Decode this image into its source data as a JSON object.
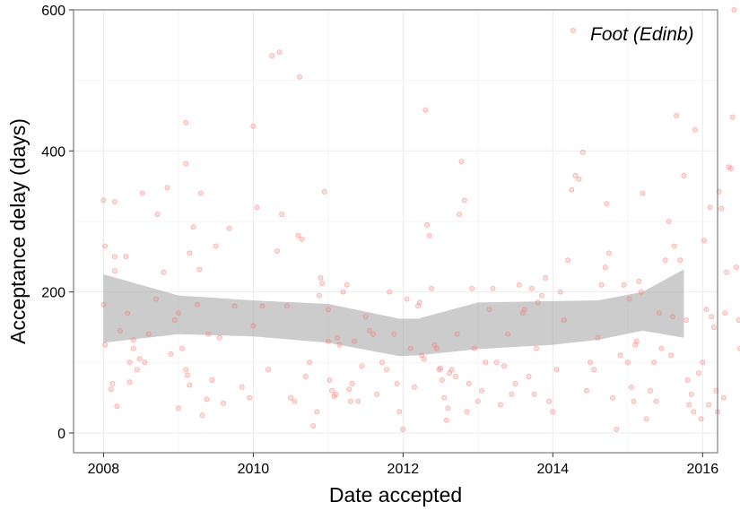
{
  "chart_data": {
    "type": "scatter",
    "xlabel": "Date accepted",
    "ylabel": "Acceptance delay (days)",
    "xlim": [
      2007.6,
      2016.2
    ],
    "ylim": [
      -28,
      600
    ],
    "x_ticks": [
      "2008",
      "2010",
      "2012",
      "2014",
      "2016"
    ],
    "y_ticks": [
      "0",
      "200",
      "400",
      "600"
    ],
    "grid": true,
    "legend_position": "top-right",
    "series": [
      {
        "name": "Foot (Edinb)",
        "color": "#F8766D",
        "points": [
          [
            2008.0,
            182
          ],
          [
            2008.0,
            330
          ],
          [
            2008.02,
            265
          ],
          [
            2008.02,
            125
          ],
          [
            2008.1,
            62
          ],
          [
            2008.12,
            70
          ],
          [
            2008.15,
            328
          ],
          [
            2008.15,
            250
          ],
          [
            2008.15,
            230
          ],
          [
            2008.18,
            38
          ],
          [
            2008.22,
            145
          ],
          [
            2008.3,
            250
          ],
          [
            2008.32,
            170
          ],
          [
            2008.35,
            100
          ],
          [
            2008.35,
            72
          ],
          [
            2008.4,
            120
          ],
          [
            2008.4,
            132
          ],
          [
            2008.45,
            90
          ],
          [
            2008.48,
            105
          ],
          [
            2008.52,
            340
          ],
          [
            2008.55,
            100
          ],
          [
            2008.6,
            140
          ],
          [
            2008.7,
            190
          ],
          [
            2008.72,
            310
          ],
          [
            2008.8,
            228
          ],
          [
            2008.85,
            348
          ],
          [
            2008.9,
            112
          ],
          [
            2008.95,
            160
          ],
          [
            2009.0,
            170
          ],
          [
            2009.0,
            35
          ],
          [
            2009.05,
            120
          ],
          [
            2009.1,
            440
          ],
          [
            2009.1,
            382
          ],
          [
            2009.1,
            90
          ],
          [
            2009.12,
            82
          ],
          [
            2009.15,
            68
          ],
          [
            2009.15,
            255
          ],
          [
            2009.2,
            292
          ],
          [
            2009.25,
            182
          ],
          [
            2009.28,
            232
          ],
          [
            2009.3,
            340
          ],
          [
            2009.32,
            25
          ],
          [
            2009.38,
            48
          ],
          [
            2009.4,
            140
          ],
          [
            2009.45,
            75
          ],
          [
            2009.5,
            265
          ],
          [
            2009.55,
            135
          ],
          [
            2009.6,
            42
          ],
          [
            2009.68,
            290
          ],
          [
            2009.75,
            180
          ],
          [
            2009.85,
            65
          ],
          [
            2009.95,
            50
          ],
          [
            2010.0,
            152
          ],
          [
            2010.0,
            435
          ],
          [
            2010.05,
            320
          ],
          [
            2010.12,
            180
          ],
          [
            2010.2,
            90
          ],
          [
            2010.25,
            535
          ],
          [
            2010.32,
            258
          ],
          [
            2010.35,
            540
          ],
          [
            2010.38,
            310
          ],
          [
            2010.45,
            180
          ],
          [
            2010.5,
            50
          ],
          [
            2010.55,
            45
          ],
          [
            2010.6,
            280
          ],
          [
            2010.62,
            505
          ],
          [
            2010.65,
            275
          ],
          [
            2010.7,
            80
          ],
          [
            2010.75,
            100
          ],
          [
            2010.8,
            10
          ],
          [
            2010.85,
            30
          ],
          [
            2010.88,
            195
          ],
          [
            2010.9,
            220
          ],
          [
            2010.92,
            212
          ],
          [
            2010.95,
            342
          ],
          [
            2011.0,
            175
          ],
          [
            2011.0,
            130
          ],
          [
            2011.02,
            75
          ],
          [
            2011.05,
            60
          ],
          [
            2011.08,
            52
          ],
          [
            2011.1,
            55
          ],
          [
            2011.12,
            135
          ],
          [
            2011.15,
            125
          ],
          [
            2011.2,
            200
          ],
          [
            2011.25,
            210
          ],
          [
            2011.28,
            62
          ],
          [
            2011.3,
            45
          ],
          [
            2011.32,
            70
          ],
          [
            2011.35,
            130
          ],
          [
            2011.4,
            45
          ],
          [
            2011.45,
            95
          ],
          [
            2011.5,
            165
          ],
          [
            2011.55,
            145
          ],
          [
            2011.6,
            140
          ],
          [
            2011.65,
            55
          ],
          [
            2011.72,
            100
          ],
          [
            2011.78,
            90
          ],
          [
            2011.82,
            200
          ],
          [
            2011.88,
            140
          ],
          [
            2011.92,
            70
          ],
          [
            2011.95,
            30
          ],
          [
            2012.0,
            5
          ],
          [
            2012.05,
            190
          ],
          [
            2012.1,
            120
          ],
          [
            2012.15,
            65
          ],
          [
            2012.2,
            180
          ],
          [
            2012.22,
            185
          ],
          [
            2012.25,
            110
          ],
          [
            2012.28,
            105
          ],
          [
            2012.3,
            458
          ],
          [
            2012.32,
            295
          ],
          [
            2012.35,
            280
          ],
          [
            2012.38,
            205
          ],
          [
            2012.42,
            125
          ],
          [
            2012.45,
            120
          ],
          [
            2012.48,
            90
          ],
          [
            2012.5,
            92
          ],
          [
            2012.52,
            75
          ],
          [
            2012.55,
            50
          ],
          [
            2012.58,
            18
          ],
          [
            2012.6,
            35
          ],
          [
            2012.62,
            85
          ],
          [
            2012.65,
            90
          ],
          [
            2012.7,
            80
          ],
          [
            2012.72,
            140
          ],
          [
            2012.75,
            310
          ],
          [
            2012.78,
            385
          ],
          [
            2012.82,
            330
          ],
          [
            2012.85,
            30
          ],
          [
            2012.88,
            70
          ],
          [
            2012.92,
            205
          ],
          [
            2012.95,
            120
          ],
          [
            2013.0,
            45
          ],
          [
            2013.05,
            60
          ],
          [
            2013.1,
            100
          ],
          [
            2013.15,
            175
          ],
          [
            2013.2,
            205
          ],
          [
            2013.25,
            100
          ],
          [
            2013.3,
            40
          ],
          [
            2013.35,
            95
          ],
          [
            2013.4,
            140
          ],
          [
            2013.45,
            55
          ],
          [
            2013.5,
            70
          ],
          [
            2013.55,
            210
          ],
          [
            2013.6,
            170
          ],
          [
            2013.62,
            175
          ],
          [
            2013.68,
            80
          ],
          [
            2013.72,
            205
          ],
          [
            2013.75,
            55
          ],
          [
            2013.78,
            120
          ],
          [
            2013.8,
            185
          ],
          [
            2013.85,
            195
          ],
          [
            2013.9,
            220
          ],
          [
            2013.95,
            45
          ],
          [
            2014.0,
            30
          ],
          [
            2014.05,
            90
          ],
          [
            2014.1,
            200
          ],
          [
            2014.15,
            160
          ],
          [
            2014.2,
            245
          ],
          [
            2014.25,
            345
          ],
          [
            2014.3,
            365
          ],
          [
            2014.35,
            360
          ],
          [
            2014.4,
            398
          ],
          [
            2014.45,
            60
          ],
          [
            2014.5,
            100
          ],
          [
            2014.55,
            90
          ],
          [
            2014.6,
            135
          ],
          [
            2014.65,
            210
          ],
          [
            2014.7,
            235
          ],
          [
            2014.72,
            325
          ],
          [
            2014.75,
            255
          ],
          [
            2014.8,
            50
          ],
          [
            2014.85,
            5
          ],
          [
            2014.9,
            110
          ],
          [
            2014.95,
            210
          ],
          [
            2015.0,
            100
          ],
          [
            2015.02,
            190
          ],
          [
            2015.05,
            65
          ],
          [
            2015.08,
            45
          ],
          [
            2015.1,
            125
          ],
          [
            2015.12,
            130
          ],
          [
            2015.15,
            215
          ],
          [
            2015.18,
            200
          ],
          [
            2015.2,
            340
          ],
          [
            2015.25,
            20
          ],
          [
            2015.3,
            60
          ],
          [
            2015.35,
            100
          ],
          [
            2015.38,
            45
          ],
          [
            2015.42,
            170
          ],
          [
            2015.45,
            120
          ],
          [
            2015.5,
            245
          ],
          [
            2015.55,
            300
          ],
          [
            2015.58,
            110
          ],
          [
            2015.6,
            165
          ],
          [
            2015.62,
            265
          ],
          [
            2015.65,
            450
          ],
          [
            2015.7,
            245
          ],
          [
            2015.75,
            365
          ],
          [
            2015.78,
            160
          ],
          [
            2015.8,
            75
          ],
          [
            2015.82,
            40
          ],
          [
            2015.85,
            55
          ],
          [
            2015.88,
            30
          ],
          [
            2015.9,
            430
          ],
          [
            2015.95,
            85
          ],
          [
            2015.98,
            20
          ],
          [
            2016.0,
            100
          ],
          [
            2016.02,
            273
          ],
          [
            2016.05,
            175
          ],
          [
            2016.08,
            40
          ],
          [
            2016.1,
            320
          ],
          [
            2016.12,
            165
          ],
          [
            2016.15,
            150
          ],
          [
            2016.18,
            60
          ],
          [
            2016.2,
            30
          ],
          [
            2016.22,
            342
          ],
          [
            2016.25,
            318
          ],
          [
            2016.28,
            50
          ],
          [
            2016.3,
            170
          ],
          [
            2016.32,
            228
          ],
          [
            2016.35,
            377
          ],
          [
            2016.38,
            375
          ],
          [
            2016.4,
            448
          ],
          [
            2016.42,
            600
          ],
          [
            2016.45,
            235
          ],
          [
            2016.48,
            160
          ],
          [
            2016.5,
            120
          ]
        ]
      }
    ],
    "smooth": {
      "color": "#999999",
      "x": [
        2008.0,
        2009.0,
        2010.0,
        2011.0,
        2011.95,
        2012.2,
        2013.0,
        2014.0,
        2014.6,
        2015.2,
        2015.75
      ],
      "upper": [
        225,
        195,
        188,
        183,
        162,
        162,
        185,
        187,
        188,
        200,
        232
      ],
      "lower": [
        128,
        140,
        137,
        128,
        109,
        110,
        119,
        125,
        132,
        145,
        135
      ]
    }
  }
}
